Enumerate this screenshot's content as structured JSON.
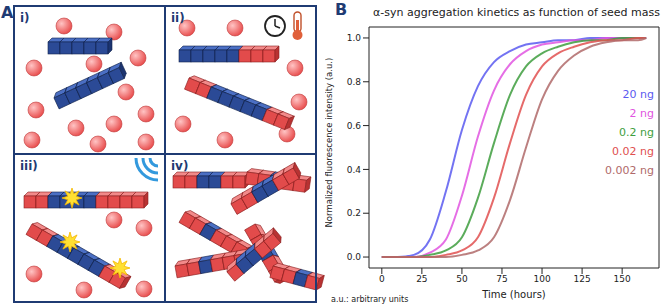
{
  "diagram": {
    "label": "A",
    "panels": [
      "i)",
      "ii)",
      "iii)",
      "iv)"
    ]
  },
  "chart_data": {
    "panel_label": "B",
    "type": "line",
    "title": "α-syn aggregation kinetics as function of seed mass",
    "x_label": "Time (hours)",
    "y_label": "Normalized fluorescence intensity (a.u.)",
    "note": "a.u.: arbitrary units",
    "x": [
      0,
      10,
      20,
      30,
      40,
      50,
      60,
      70,
      80,
      90,
      100,
      110,
      120,
      130,
      140,
      150,
      160,
      165
    ],
    "series": [
      {
        "name": "20 ng",
        "color": "#5a5af0",
        "values": [
          0,
          0,
          0.01,
          0.08,
          0.3,
          0.58,
          0.78,
          0.89,
          0.94,
          0.97,
          0.98,
          0.99,
          0.99,
          1.0,
          1.0,
          1.0,
          1.0,
          1.0
        ]
      },
      {
        "name": "2 ng",
        "color": "#e055e0",
        "values": [
          0,
          0,
          0,
          0.02,
          0.08,
          0.28,
          0.55,
          0.76,
          0.88,
          0.94,
          0.97,
          0.98,
          0.99,
          0.99,
          1.0,
          1.0,
          1.0,
          1.0
        ]
      },
      {
        "name": "0.2 ng",
        "color": "#3e9e3e",
        "values": [
          0,
          0,
          0,
          0.01,
          0.03,
          0.09,
          0.27,
          0.52,
          0.74,
          0.87,
          0.93,
          0.96,
          0.98,
          0.99,
          0.99,
          1.0,
          1.0,
          1.0
        ]
      },
      {
        "name": "0.02 ng",
        "color": "#e05050",
        "values": [
          0,
          0,
          0,
          0,
          0.01,
          0.03,
          0.09,
          0.27,
          0.52,
          0.74,
          0.87,
          0.93,
          0.96,
          0.98,
          0.99,
          0.99,
          1.0,
          1.0
        ]
      },
      {
        "name": "0.002 ng",
        "color": "#b06a6a",
        "values": [
          0,
          0,
          0,
          0,
          0,
          0.01,
          0.03,
          0.09,
          0.26,
          0.5,
          0.72,
          0.85,
          0.92,
          0.96,
          0.98,
          0.99,
          0.99,
          1.0
        ]
      }
    ],
    "xlim": [
      -8,
      173
    ],
    "ylim": [
      -0.05,
      1.05
    ],
    "xticks": [
      0,
      25,
      50,
      75,
      100,
      125,
      150
    ],
    "yticks": [
      {
        "value": 0,
        "label": "0.0"
      },
      {
        "value": 0.2,
        "label": "0.2"
      },
      {
        "value": 0.4,
        "label": "0.4"
      },
      {
        "value": 0.6,
        "label": "0.6"
      },
      {
        "value": 0.8,
        "label": "0.8"
      },
      {
        "value": 1.0,
        "label": "1.0"
      }
    ],
    "grid": false,
    "legend": "right"
  }
}
